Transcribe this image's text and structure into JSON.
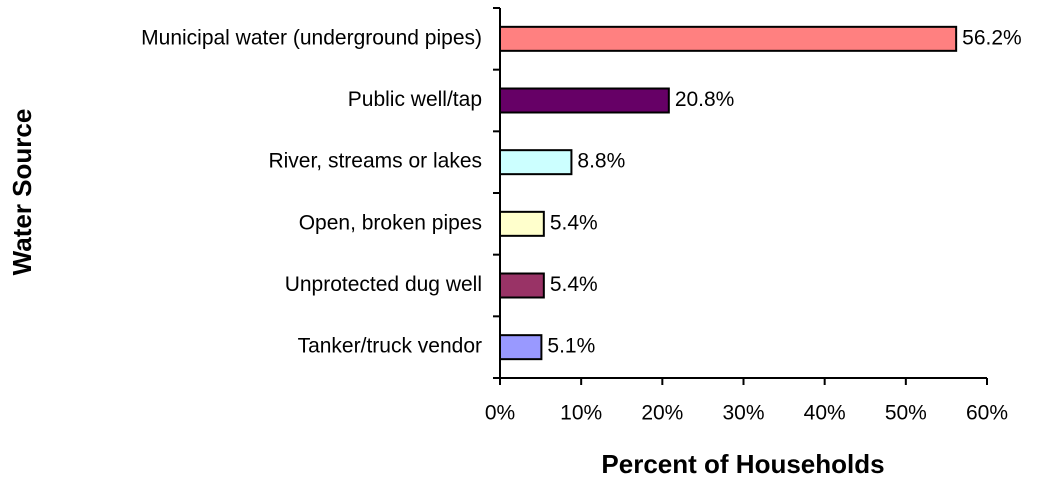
{
  "chart_data": {
    "type": "barh",
    "xlabel": "Percent of Households",
    "ylabel": "Water Source",
    "categories": [
      "Municipal water (underground pipes)",
      "Public well/tap",
      "River, streams or lakes",
      "Open, broken pipes",
      "Unprotected dug well",
      "Tanker/truck vendor"
    ],
    "values": [
      56.2,
      20.8,
      8.8,
      5.4,
      5.4,
      5.1
    ],
    "value_labels": [
      "56.2%",
      "20.8%",
      "8.8%",
      "5.4%",
      "5.4%",
      "5.1%"
    ],
    "colors": [
      "#FF8080",
      "#660066",
      "#CCFFFF",
      "#FFFFCC",
      "#993366",
      "#9999FF"
    ],
    "xlim": [
      0,
      60
    ],
    "xticks": [
      {
        "value": 0,
        "label": "0%"
      },
      {
        "value": 10,
        "label": "10%"
      },
      {
        "value": 20,
        "label": "20%"
      },
      {
        "value": 30,
        "label": "30%"
      },
      {
        "value": 40,
        "label": "40%"
      },
      {
        "value": 50,
        "label": "50%"
      },
      {
        "value": 60,
        "label": "60%"
      }
    ]
  }
}
